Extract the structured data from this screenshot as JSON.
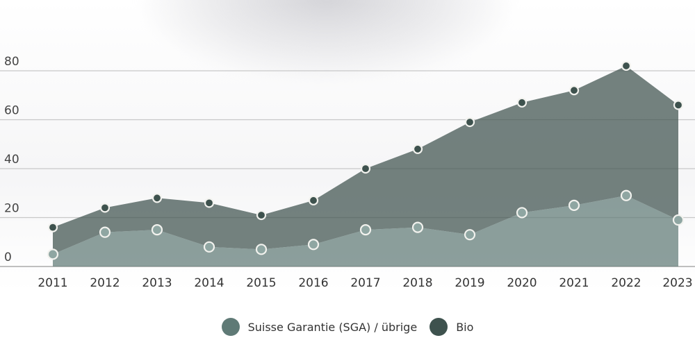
{
  "chart_data": {
    "type": "area",
    "stacked": true,
    "categories": [
      "2011",
      "2012",
      "2013",
      "2014",
      "2015",
      "2016",
      "2017",
      "2018",
      "2019",
      "2020",
      "2021",
      "2022",
      "2023"
    ],
    "series": [
      {
        "name": "Suisse Garantie (SGA) / übrige",
        "color": "#5f7a76",
        "values": [
          5,
          14,
          15,
          8,
          7,
          9,
          15,
          16,
          13,
          22,
          25,
          29,
          19
        ]
      },
      {
        "name": "Bio",
        "color": "#3e524e",
        "values": [
          11,
          10,
          13,
          18,
          14,
          18,
          25,
          32,
          46,
          45,
          47,
          53,
          47
        ]
      }
    ],
    "totals": [
      16,
      24,
      28,
      26,
      21,
      27,
      40,
      48,
      59,
      67,
      72,
      82,
      66
    ],
    "yticks": [
      0,
      20,
      40,
      60,
      80
    ],
    "ylim": [
      0,
      80
    ],
    "grid": true,
    "legend_position": "bottom"
  }
}
